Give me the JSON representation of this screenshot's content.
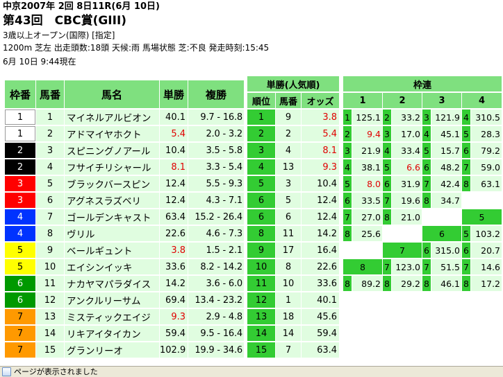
{
  "header": {
    "title1": "中京2007年 2回 8日11R(6月 10日)",
    "title2": "第43回　CBC賞(GIII)",
    "conditions": "3歳以上オープン(国際) [指定]",
    "info": "1200m 芝左 出走頭数:18頭 天候:雨 馬場状態 芝:不良 発走時刻:15:45",
    "timestamp": "6月 10日 9:44現在"
  },
  "entries_table": {
    "headers": [
      "枠番",
      "馬番",
      "馬名",
      "単勝",
      "複勝"
    ],
    "rows": [
      {
        "waku": "1",
        "uma": "1",
        "name": "マイネルアルビオン",
        "win": "40.1",
        "place_low": "9.7",
        "place_high": "16.8",
        "win_red": false,
        "waku_bg": "#ffffff",
        "waku_fg": "#000000"
      },
      {
        "waku": "1",
        "uma": "2",
        "name": "アドマイヤホクト",
        "win": "5.4",
        "place_low": "2.0",
        "place_high": "3.2",
        "win_red": true,
        "waku_bg": "#ffffff",
        "waku_fg": "#000000"
      },
      {
        "waku": "2",
        "uma": "3",
        "name": "スピニングノアール",
        "win": "10.4",
        "place_low": "3.5",
        "place_high": "5.8",
        "win_red": false,
        "waku_bg": "#000000",
        "waku_fg": "#ffffff"
      },
      {
        "waku": "2",
        "uma": "4",
        "name": "フサイチリシャール",
        "win": "8.1",
        "place_low": "3.3",
        "place_high": "5.4",
        "win_red": true,
        "waku_bg": "#000000",
        "waku_fg": "#ffffff"
      },
      {
        "waku": "3",
        "uma": "5",
        "name": "ブラックバースピン",
        "win": "12.4",
        "place_low": "5.5",
        "place_high": "9.3",
        "win_red": false,
        "waku_bg": "#ff0000",
        "waku_fg": "#ffffff"
      },
      {
        "waku": "3",
        "uma": "6",
        "name": "アグネスラズベリ",
        "win": "12.4",
        "place_low": "4.3",
        "place_high": "7.1",
        "win_red": false,
        "waku_bg": "#ff0000",
        "waku_fg": "#ffffff"
      },
      {
        "waku": "4",
        "uma": "7",
        "name": "ゴールデンキャスト",
        "win": "63.4",
        "place_low": "15.2",
        "place_high": "26.4",
        "win_red": false,
        "waku_bg": "#0033ff",
        "waku_fg": "#ffffff"
      },
      {
        "waku": "4",
        "uma": "8",
        "name": "ヴリル",
        "win": "22.6",
        "place_low": "4.6",
        "place_high": "7.3",
        "win_red": false,
        "waku_bg": "#0033ff",
        "waku_fg": "#ffffff"
      },
      {
        "waku": "5",
        "uma": "9",
        "name": "ベールギュント",
        "win": "3.8",
        "place_low": "1.5",
        "place_high": "2.1",
        "win_red": true,
        "waku_bg": "#ffff00",
        "waku_fg": "#000000"
      },
      {
        "waku": "5",
        "uma": "10",
        "name": "エイシンイッキ",
        "win": "33.6",
        "place_low": "8.2",
        "place_high": "14.2",
        "win_red": false,
        "waku_bg": "#ffff00",
        "waku_fg": "#000000"
      },
      {
        "waku": "6",
        "uma": "11",
        "name": "ナカヤマパラダイス",
        "win": "14.2",
        "place_low": "3.6",
        "place_high": "6.0",
        "win_red": false,
        "waku_bg": "#009900",
        "waku_fg": "#ffffff"
      },
      {
        "waku": "6",
        "uma": "12",
        "name": "アンクルリーサム",
        "win": "69.4",
        "place_low": "13.4",
        "place_high": "23.2",
        "win_red": false,
        "waku_bg": "#009900",
        "waku_fg": "#ffffff"
      },
      {
        "waku": "7",
        "uma": "13",
        "name": "ミスティックエイジ",
        "win": "9.3",
        "place_low": "2.9",
        "place_high": "4.8",
        "win_red": true,
        "waku_bg": "#ff9900",
        "waku_fg": "#000000"
      },
      {
        "waku": "7",
        "uma": "14",
        "name": "リキアイタイカン",
        "win": "59.4",
        "place_low": "9.5",
        "place_high": "16.4",
        "win_red": false,
        "waku_bg": "#ff9900",
        "waku_fg": "#000000"
      },
      {
        "waku": "7",
        "uma": "15",
        "name": "グランリーオ",
        "win": "102.9",
        "place_low": "19.9",
        "place_high": "34.6",
        "win_red": false,
        "waku_bg": "#ff9900",
        "waku_fg": "#000000"
      }
    ]
  },
  "popularity_table": {
    "title": "単勝(人気順)",
    "headers": [
      "順位",
      "馬番",
      "オッズ"
    ],
    "rows": [
      {
        "rank": "1",
        "uma": "9",
        "odds": "3.8",
        "red": true
      },
      {
        "rank": "2",
        "uma": "2",
        "odds": "5.4",
        "red": true
      },
      {
        "rank": "3",
        "uma": "4",
        "odds": "8.1",
        "red": true
      },
      {
        "rank": "4",
        "uma": "13",
        "odds": "9.3",
        "red": true
      },
      {
        "rank": "5",
        "uma": "3",
        "odds": "10.4",
        "red": false
      },
      {
        "rank": "6",
        "uma": "5",
        "odds": "12.4",
        "red": false
      },
      {
        "rank": "6",
        "uma": "6",
        "odds": "12.4",
        "red": false
      },
      {
        "rank": "8",
        "uma": "11",
        "odds": "14.2",
        "red": false
      },
      {
        "rank": "9",
        "uma": "17",
        "odds": "16.4",
        "red": false
      },
      {
        "rank": "10",
        "uma": "8",
        "odds": "22.6",
        "red": false
      },
      {
        "rank": "11",
        "uma": "10",
        "odds": "33.6",
        "red": false
      },
      {
        "rank": "12",
        "uma": "1",
        "odds": "40.1",
        "red": false
      },
      {
        "rank": "13",
        "uma": "18",
        "odds": "45.6",
        "red": false
      },
      {
        "rank": "14",
        "uma": "14",
        "odds": "59.4",
        "red": false
      },
      {
        "rank": "15",
        "uma": "7",
        "odds": "63.4",
        "red": false
      }
    ]
  },
  "wakuren_table": {
    "title": "枠連",
    "col_headers": [
      "1",
      "2",
      "3",
      "4"
    ],
    "rows": [
      [
        {
          "k": "1",
          "v": "125.1"
        },
        {
          "k": "2",
          "v": "33.2"
        },
        {
          "k": "3",
          "v": "121.9"
        },
        {
          "k": "4",
          "v": "310.5"
        }
      ],
      [
        {
          "k": "2",
          "v": "9.4",
          "red": true
        },
        {
          "k": "3",
          "v": "17.0"
        },
        {
          "k": "4",
          "v": "45.1"
        },
        {
          "k": "5",
          "v": "28.3"
        }
      ],
      [
        {
          "k": "3",
          "v": "21.9"
        },
        {
          "k": "4",
          "v": "33.4"
        },
        {
          "k": "5",
          "v": "15.7"
        },
        {
          "k": "6",
          "v": "79.2"
        }
      ],
      [
        {
          "k": "4",
          "v": "38.1"
        },
        {
          "k": "5",
          "v": "6.6",
          "red": true
        },
        {
          "k": "6",
          "v": "48.2"
        },
        {
          "k": "7",
          "v": "59.0"
        }
      ],
      [
        {
          "k": "5",
          "v": "8.0",
          "red": true
        },
        {
          "k": "6",
          "v": "31.9"
        },
        {
          "k": "7",
          "v": "42.4"
        },
        {
          "k": "8",
          "v": "63.1"
        }
      ],
      [
        {
          "k": "6",
          "v": "33.5"
        },
        {
          "k": "7",
          "v": "19.6"
        },
        {
          "k": "8",
          "v": "34.7"
        },
        {
          "blank": true
        }
      ],
      [
        {
          "k": "7",
          "v": "27.0"
        },
        {
          "k": "8",
          "v": "21.0"
        },
        {
          "blank": true
        },
        {
          "head": "5"
        }
      ],
      [
        {
          "k": "8",
          "v": "25.6"
        },
        {
          "blank": true
        },
        {
          "head": "6"
        },
        {
          "k": "5",
          "v": "103.2"
        }
      ],
      [
        {
          "blank": true
        },
        {
          "head": "7"
        },
        {
          "k": "6",
          "v": "315.0"
        },
        {
          "k": "6",
          "v": "20.7"
        }
      ],
      [
        {
          "head": "8"
        },
        {
          "k": "7",
          "v": "123.0"
        },
        {
          "k": "7",
          "v": "51.5"
        },
        {
          "k": "7",
          "v": "14.6"
        }
      ],
      [
        {
          "k": "8",
          "v": "89.2"
        },
        {
          "k": "8",
          "v": "29.2"
        },
        {
          "k": "8",
          "v": "46.1"
        },
        {
          "k": "8",
          "v": "17.2"
        }
      ]
    ]
  },
  "statusbar": {
    "text": "ページが表示されました"
  },
  "colors": {
    "header_green": "#7fe07f",
    "key_green": "#33cc33",
    "cell_green": "#e0fde0",
    "odds_red": "#e00000"
  }
}
